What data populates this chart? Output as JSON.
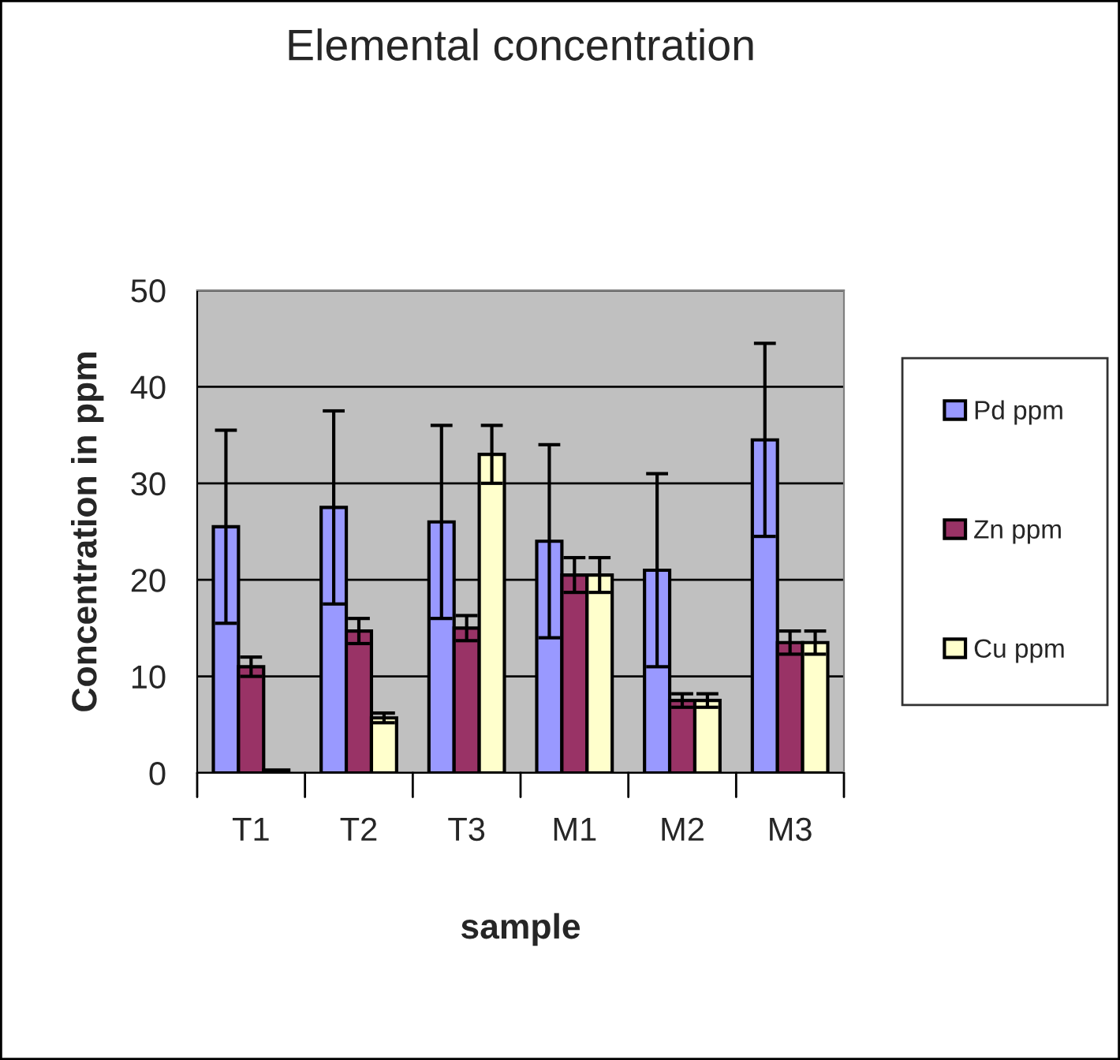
{
  "chart_data": {
    "type": "bar",
    "title": "Elemental concentration",
    "xlabel": "sample",
    "ylabel": "Concentration in ppm",
    "categories": [
      "T1",
      "T2",
      "T3",
      "M1",
      "M2",
      "M3"
    ],
    "series": [
      {
        "name": "Pd ppm",
        "color": "#9999ff",
        "values": [
          25.5,
          27.5,
          26,
          24,
          21,
          34.5
        ],
        "errors": [
          10,
          10,
          10,
          10,
          10,
          10
        ]
      },
      {
        "name": "Zn ppm",
        "color": "#993366",
        "values": [
          11,
          14.7,
          15,
          20.5,
          7.5,
          13.5
        ],
        "errors": [
          1,
          1.3,
          1.3,
          1.8,
          0.7,
          1.2
        ]
      },
      {
        "name": "Cu ppm",
        "color": "#ffffcc",
        "values": [
          0.3,
          5.7,
          33,
          20.5,
          7.5,
          13.5
        ],
        "errors": [
          null,
          0.5,
          3,
          1.8,
          0.7,
          1.2
        ]
      }
    ],
    "ylim": [
      0,
      50
    ],
    "yticks": [
      0,
      10,
      20,
      30,
      40,
      50
    ],
    "grid": "y",
    "legend": "right"
  }
}
